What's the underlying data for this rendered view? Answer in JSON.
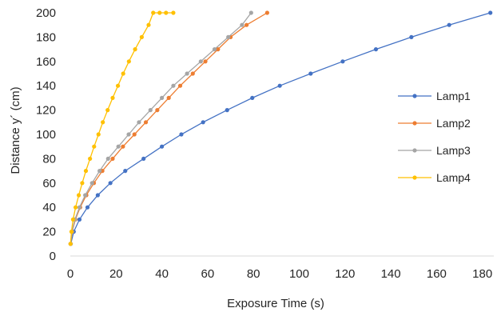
{
  "chart_data": {
    "type": "scatter",
    "xlabel": "Exposure Time (s)",
    "ylabel": "Distance y´ (cm)",
    "xlim": [
      0,
      185
    ],
    "ylim": [
      0,
      200
    ],
    "xticks": [
      0,
      20,
      40,
      60,
      80,
      100,
      120,
      140,
      160,
      180
    ],
    "yticks": [
      0,
      20,
      40,
      60,
      80,
      100,
      120,
      140,
      160,
      180,
      200
    ],
    "grid": false,
    "legend_position": "right",
    "series": [
      {
        "name": "Lamp1",
        "color": "#4472C4",
        "x": [
          0.2,
          1.5,
          4,
          7.5,
          12,
          17.5,
          24,
          32,
          40,
          48.5,
          58,
          68.5,
          79.5,
          91.5,
          105,
          119,
          133.5,
          149,
          165.5,
          183.5
        ],
        "y": [
          10,
          20,
          30,
          40,
          50,
          60,
          70,
          80,
          90,
          100,
          110,
          120,
          130,
          140,
          150,
          160,
          170,
          180,
          190,
          200
        ]
      },
      {
        "name": "Lamp2",
        "color": "#ED7D31",
        "x": [
          0.1,
          0.8,
          2.2,
          4.3,
          7,
          10.3,
          14,
          18.5,
          23,
          28,
          33,
          38,
          43,
          48,
          53.5,
          59,
          64.5,
          70,
          77,
          86
        ],
        "y": [
          10,
          20,
          30,
          40,
          50,
          60,
          70,
          80,
          90,
          100,
          110,
          120,
          130,
          140,
          150,
          160,
          170,
          180,
          190,
          200
        ]
      },
      {
        "name": "Lamp3",
        "color": "#A5A5A5",
        "x": [
          0.1,
          0.7,
          2,
          4,
          6.5,
          9.5,
          12.8,
          16.5,
          21,
          25.5,
          30,
          35,
          40,
          45,
          51,
          57,
          63,
          69,
          75,
          79
        ],
        "y": [
          10,
          20,
          30,
          40,
          50,
          60,
          70,
          80,
          90,
          100,
          110,
          120,
          130,
          140,
          150,
          160,
          170,
          180,
          190,
          200
        ]
      },
      {
        "name": "Lamp4",
        "color": "#FFC000",
        "x": [
          0.1,
          0.5,
          1.2,
          2.3,
          3.7,
          5.2,
          6.8,
          8.6,
          10.4,
          12.3,
          14.2,
          16.3,
          18.5,
          20.8,
          23.1,
          25.6,
          28.3,
          31.2,
          34.2,
          36.2,
          39,
          41.8,
          45
        ],
        "y": [
          10,
          20,
          30,
          40,
          50,
          60,
          70,
          80,
          90,
          100,
          110,
          120,
          130,
          140,
          150,
          160,
          170,
          180,
          190,
          200,
          200,
          200,
          200
        ]
      }
    ]
  }
}
